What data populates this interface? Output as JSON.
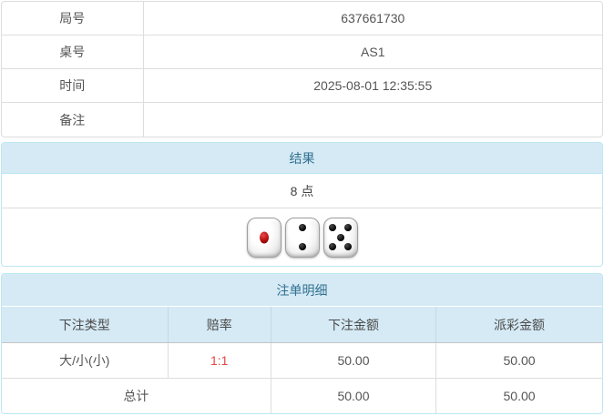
{
  "info_table": {
    "rows": [
      {
        "label": "局号",
        "value": "637661730"
      },
      {
        "label": "桌号",
        "value": "AS1"
      },
      {
        "label": "时间",
        "value": "2025-08-01 12:35:55"
      },
      {
        "label": "备注",
        "value": ""
      }
    ]
  },
  "result_panel": {
    "title": "结果",
    "points": "8 点",
    "dice": [
      1,
      2,
      5
    ],
    "dice_total": 8
  },
  "bets_panel": {
    "title": "注单明细",
    "columns": [
      "下注类型",
      "赔率",
      "下注金额",
      "派彩金额"
    ],
    "rows": [
      {
        "type": "大/小(小)",
        "odds": "1:1",
        "bet": "50.00",
        "payout": "50.00"
      }
    ],
    "total_label": "总计",
    "total_bet": "50.00",
    "total_payout": "50.00"
  },
  "colors": {
    "panel_border": "#bce8f1",
    "heading_bg": "#d5eaf5",
    "heading_text": "#31708f",
    "table_border": "#dddddd",
    "odds_red": "#e64545",
    "pip_black": "#000000",
    "pip_red": "#b40d0d"
  }
}
